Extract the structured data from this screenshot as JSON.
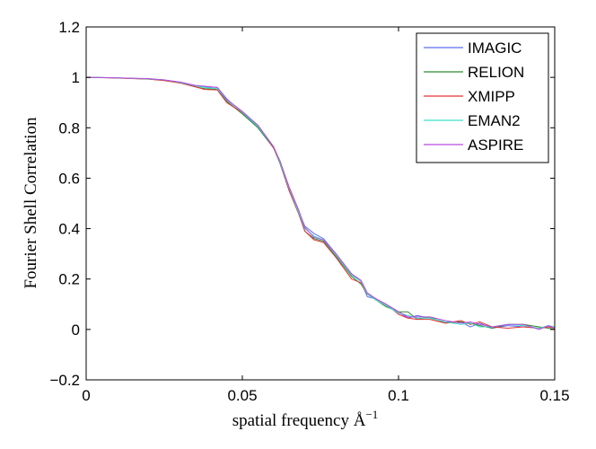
{
  "chart_data": {
    "type": "line",
    "title": "",
    "xlabel": "spatial frequency Å",
    "xlabel_exponent": "−1",
    "ylabel": "Fourier Shell Correlation",
    "xlim": [
      0,
      0.15
    ],
    "ylim": [
      -0.2,
      1.2
    ],
    "xticks": [
      0,
      0.05,
      0.1,
      0.15
    ],
    "xtick_labels": [
      "0",
      "0.05",
      "0.1",
      "0.15"
    ],
    "yticks": [
      -0.2,
      0,
      0.2,
      0.4,
      0.6,
      0.8,
      1,
      1.2
    ],
    "ytick_labels": [
      "−0.2",
      "0",
      "0.2",
      "0.4",
      "0.6",
      "0.8",
      "1",
      "1.2"
    ],
    "grid": false,
    "legend_position": "top-right",
    "x": [
      0,
      0.01,
      0.02,
      0.025,
      0.03,
      0.035,
      0.038,
      0.042,
      0.045,
      0.05,
      0.055,
      0.06,
      0.062,
      0.065,
      0.068,
      0.07,
      0.073,
      0.076,
      0.08,
      0.085,
      0.088,
      0.09,
      0.093,
      0.096,
      0.1,
      0.103,
      0.106,
      0.11,
      0.115,
      0.12,
      0.123,
      0.126,
      0.13,
      0.135,
      0.14,
      0.145,
      0.148,
      0.15
    ],
    "series": [
      {
        "name": "IMAGIC",
        "color": "#5b6ff0",
        "values": [
          1.0,
          0.998,
          0.994,
          0.99,
          0.98,
          0.965,
          0.962,
          0.96,
          0.915,
          0.86,
          0.8,
          0.72,
          0.67,
          0.56,
          0.47,
          0.41,
          0.38,
          0.36,
          0.3,
          0.22,
          0.19,
          0.13,
          0.12,
          0.1,
          0.07,
          0.045,
          0.055,
          0.045,
          0.03,
          0.03,
          0.01,
          0.025,
          0.005,
          0.015,
          0.01,
          0.005,
          0.01,
          0.01
        ]
      },
      {
        "name": "RELION",
        "color": "#2e8b2e",
        "values": [
          1.0,
          0.998,
          0.993,
          0.988,
          0.978,
          0.962,
          0.955,
          0.952,
          0.905,
          0.855,
          0.8,
          0.72,
          0.66,
          0.55,
          0.46,
          0.39,
          0.36,
          0.35,
          0.29,
          0.21,
          0.18,
          0.14,
          0.115,
          0.09,
          0.07,
          0.07,
          0.04,
          0.05,
          0.025,
          0.03,
          0.025,
          0.015,
          0.005,
          0.02,
          0.02,
          0.01,
          0.005,
          0.0
        ]
      },
      {
        "name": "XMIPP",
        "color": "#e63030",
        "values": [
          1.0,
          0.997,
          0.993,
          0.987,
          0.978,
          0.962,
          0.952,
          0.95,
          0.9,
          0.86,
          0.81,
          0.72,
          0.665,
          0.55,
          0.46,
          0.39,
          0.355,
          0.345,
          0.285,
          0.2,
          0.185,
          0.14,
          0.12,
          0.1,
          0.06,
          0.045,
          0.04,
          0.04,
          0.025,
          0.035,
          0.02,
          0.03,
          0.01,
          0.005,
          0.01,
          0.005,
          0.01,
          0.005
        ]
      },
      {
        "name": "EMAN2",
        "color": "#3de0c8",
        "values": [
          1.0,
          0.998,
          0.994,
          0.99,
          0.98,
          0.966,
          0.96,
          0.955,
          0.91,
          0.862,
          0.805,
          0.725,
          0.665,
          0.56,
          0.465,
          0.4,
          0.37,
          0.355,
          0.295,
          0.215,
          0.19,
          0.14,
          0.115,
          0.095,
          0.065,
          0.055,
          0.045,
          0.045,
          0.03,
          0.02,
          0.025,
          0.01,
          0.01,
          0.02,
          0.015,
          0.005,
          0.015,
          0.01
        ]
      },
      {
        "name": "ASPIRE",
        "color": "#b94ae0",
        "values": [
          1.0,
          0.998,
          0.995,
          0.99,
          0.982,
          0.968,
          0.965,
          0.96,
          0.912,
          0.865,
          0.81,
          0.725,
          0.67,
          0.565,
          0.475,
          0.405,
          0.365,
          0.355,
          0.3,
          0.22,
          0.195,
          0.145,
          0.12,
          0.1,
          0.07,
          0.05,
          0.05,
          0.05,
          0.035,
          0.025,
          0.03,
          0.02,
          0.01,
          0.02,
          0.02,
          0.0,
          0.015,
          0.005
        ]
      }
    ]
  }
}
